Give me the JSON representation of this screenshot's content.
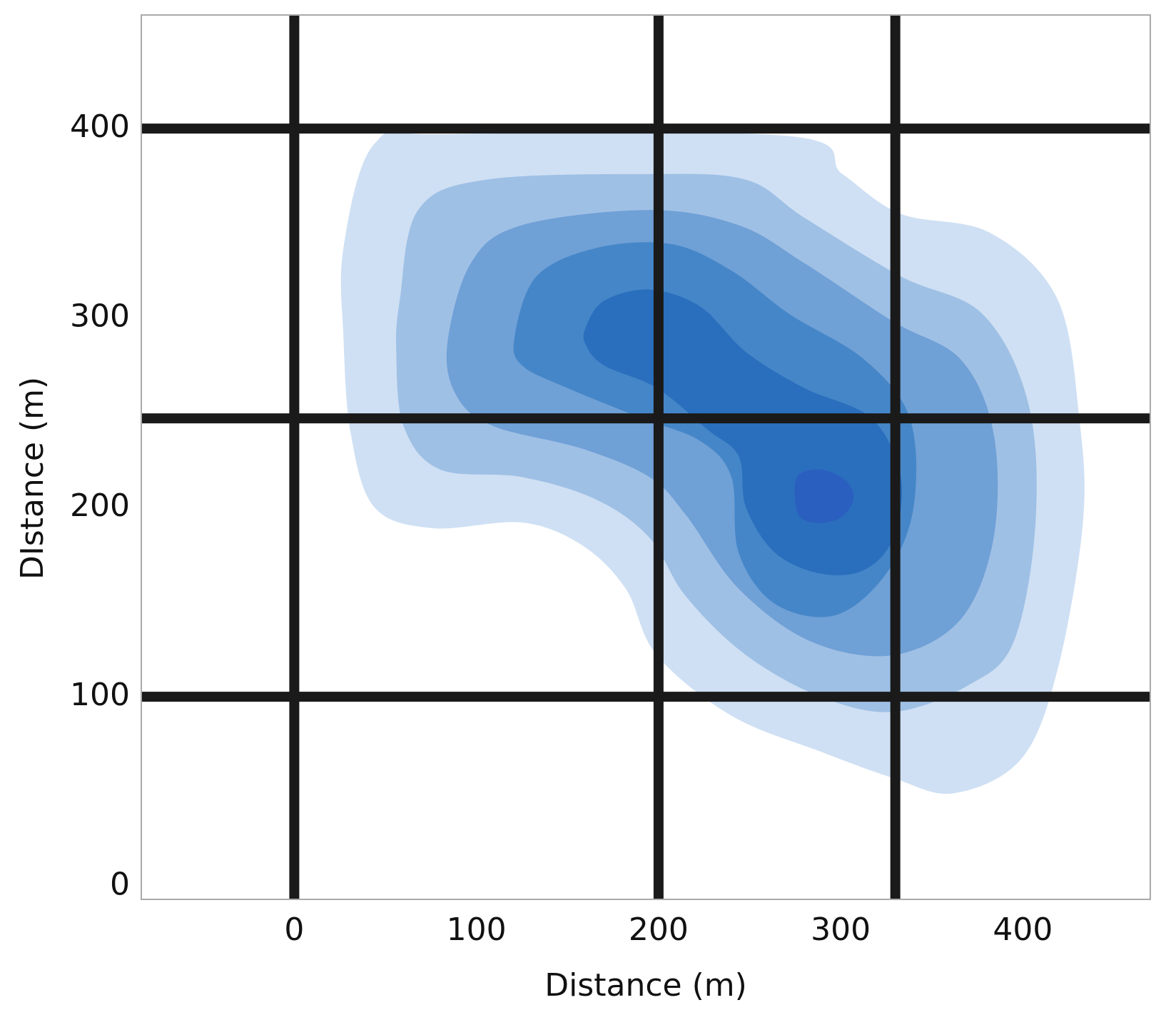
{
  "chart_data": {
    "type": "contour",
    "xlabel": "Distance (m)",
    "ylabel": "DIstance (m)",
    "xlim": [
      -84,
      470
    ],
    "ylim": [
      -7,
      460
    ],
    "xticks": [
      0,
      100,
      200,
      300,
      400
    ],
    "yticks": [
      0,
      100,
      200,
      300,
      400
    ],
    "levels": [
      {
        "color": "#cfe0f4",
        "x": [
          27,
          44,
          84,
          272,
          301,
          333,
          382,
          419,
          431,
          433,
          419,
          399,
          362,
          329,
          289,
          240,
          199,
          182,
          158,
          125,
          76,
          44,
          31,
          27
        ],
        "y": [
          337,
          392,
          397,
          396,
          376,
          355,
          345,
          310,
          247,
          192,
          114,
          67,
          49,
          57,
          71,
          90,
          122,
          157,
          180,
          192,
          189,
          200,
          239,
          290
        ]
      },
      {
        "color": "#9fc0e5",
        "x": [
          68,
          105,
          195,
          248,
          280,
          333,
          378,
          403,
          407,
          395,
          370,
          329,
          289,
          248,
          215,
          195,
          166,
          125,
          80,
          60,
          56,
          58
        ],
        "y": [
          357,
          373,
          376,
          373,
          353,
          322,
          302,
          255,
          192,
          129,
          106,
          92,
          100,
          122,
          153,
          184,
          204,
          216,
          220,
          243,
          282,
          310
        ]
      },
      {
        "color": "#6fa0d6",
        "x": [
          84,
          97,
          125,
          195,
          244,
          280,
          329,
          366,
          384,
          384,
          366,
          329,
          284,
          244,
          215,
          195,
          158,
          109,
          89
        ],
        "y": [
          286,
          329,
          349,
          357,
          349,
          329,
          298,
          278,
          239,
          184,
          141,
          122,
          129,
          157,
          196,
          216,
          231,
          243,
          259
        ]
      },
      {
        "color": "#4586c8",
        "x": [
          121,
          133,
          166,
          207,
          240,
          272,
          313,
          338,
          340,
          325,
          297,
          264,
          244,
          240,
          223,
          191,
          150,
          125
        ],
        "y": [
          290,
          322,
          337,
          339,
          325,
          302,
          278,
          247,
          200,
          165,
          143,
          149,
          176,
          216,
          235,
          247,
          263,
          275
        ]
      },
      {
        "color": "#2a6fbd",
        "x": [
          160,
          170,
          195,
          223,
          248,
          280,
          317,
          333,
          329,
          313,
          289,
          264,
          248,
          244,
          227,
          199,
          170,
          160
        ],
        "y": [
          295,
          309,
          315,
          306,
          282,
          263,
          247,
          216,
          184,
          167,
          165,
          176,
          200,
          227,
          241,
          263,
          275,
          286
        ]
      },
      {
        "color": "#2a5fbf",
        "x": [
          276,
          289,
          303,
          307,
          299,
          284,
          276
        ],
        "y": [
          216,
          220,
          214,
          204,
          194,
          192,
          198
        ]
      }
    ],
    "lines": {
      "color": "#1a1a1a",
      "x": [
        0,
        200,
        330
      ],
      "y": [
        100,
        247,
        400
      ]
    }
  }
}
